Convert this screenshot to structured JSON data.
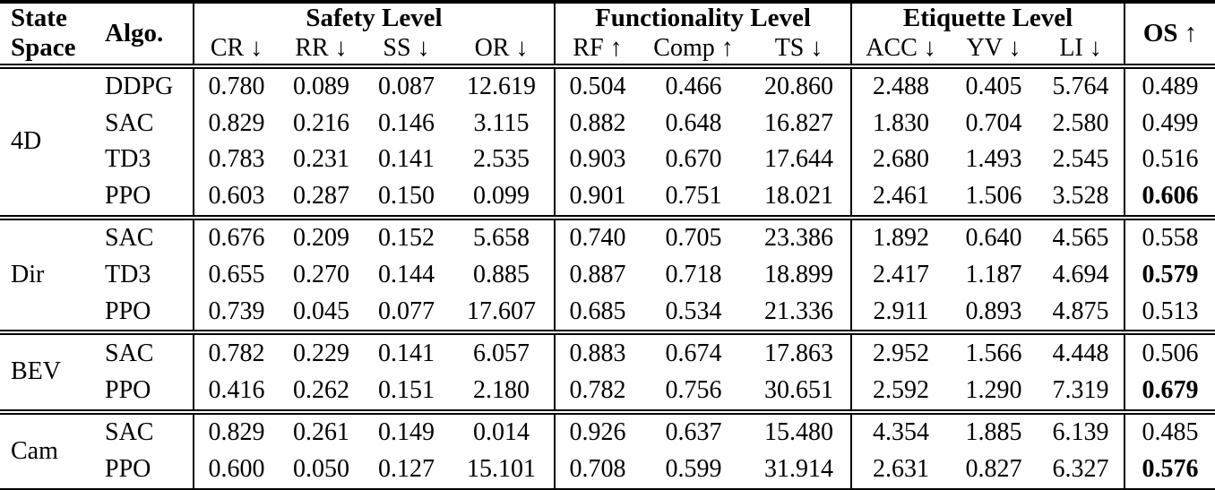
{
  "colors": {
    "text": "#000000",
    "background": "#ffffff",
    "rule": "#000000"
  },
  "header": {
    "state_line1": "State",
    "state_line2": "Space",
    "algo": "Algo.",
    "level_groups": [
      {
        "label": "Safety Level",
        "span": 4
      },
      {
        "label": "Functionality Level",
        "span": 3
      },
      {
        "label": "Etiquette Level",
        "span": 3
      }
    ],
    "subcols": [
      "CR ↓",
      "RR ↓",
      "SS ↓",
      "OR ↓",
      "RF ↑",
      "Comp ↑",
      "TS ↓",
      "ACC ↓",
      "YV ↓",
      "LI ↓"
    ],
    "os_label": "OS",
    "os_arrow": "↑"
  },
  "body": {
    "groups": [
      {
        "state_space": "4D",
        "rows": [
          {
            "algo": "DDPG",
            "values": [
              "0.780",
              "0.089",
              "0.087",
              "12.619",
              "0.504",
              "0.466",
              "20.860",
              "2.488",
              "0.405",
              "5.764",
              "0.489"
            ],
            "bold_os": false
          },
          {
            "algo": "SAC",
            "values": [
              "0.829",
              "0.216",
              "0.146",
              "3.115",
              "0.882",
              "0.648",
              "16.827",
              "1.830",
              "0.704",
              "2.580",
              "0.499"
            ],
            "bold_os": false
          },
          {
            "algo": "TD3",
            "values": [
              "0.783",
              "0.231",
              "0.141",
              "2.535",
              "0.903",
              "0.670",
              "17.644",
              "2.680",
              "1.493",
              "2.545",
              "0.516"
            ],
            "bold_os": false
          },
          {
            "algo": "PPO",
            "values": [
              "0.603",
              "0.287",
              "0.150",
              "0.099",
              "0.901",
              "0.751",
              "18.021",
              "2.461",
              "1.506",
              "3.528",
              "0.606"
            ],
            "bold_os": true
          }
        ]
      },
      {
        "state_space": "Dir",
        "rows": [
          {
            "algo": "SAC",
            "values": [
              "0.676",
              "0.209",
              "0.152",
              "5.658",
              "0.740",
              "0.705",
              "23.386",
              "1.892",
              "0.640",
              "4.565",
              "0.558"
            ],
            "bold_os": false
          },
          {
            "algo": "TD3",
            "values": [
              "0.655",
              "0.270",
              "0.144",
              "0.885",
              "0.887",
              "0.718",
              "18.899",
              "2.417",
              "1.187",
              "4.694",
              "0.579"
            ],
            "bold_os": true
          },
          {
            "algo": "PPO",
            "values": [
              "0.739",
              "0.045",
              "0.077",
              "17.607",
              "0.685",
              "0.534",
              "21.336",
              "2.911",
              "0.893",
              "4.875",
              "0.513"
            ],
            "bold_os": false
          }
        ]
      },
      {
        "state_space": "BEV",
        "rows": [
          {
            "algo": "SAC",
            "values": [
              "0.782",
              "0.229",
              "0.141",
              "6.057",
              "0.883",
              "0.674",
              "17.863",
              "2.952",
              "1.566",
              "4.448",
              "0.506"
            ],
            "bold_os": false
          },
          {
            "algo": "PPO",
            "values": [
              "0.416",
              "0.262",
              "0.151",
              "2.180",
              "0.782",
              "0.756",
              "30.651",
              "2.592",
              "1.290",
              "7.319",
              "0.679"
            ],
            "bold_os": true
          }
        ]
      },
      {
        "state_space": "Cam",
        "rows": [
          {
            "algo": "SAC",
            "values": [
              "0.829",
              "0.261",
              "0.149",
              "0.014",
              "0.926",
              "0.637",
              "15.480",
              "4.354",
              "1.885",
              "6.139",
              "0.485"
            ],
            "bold_os": false
          },
          {
            "algo": "PPO",
            "values": [
              "0.600",
              "0.050",
              "0.127",
              "15.101",
              "0.708",
              "0.599",
              "31.914",
              "2.631",
              "0.827",
              "6.327",
              "0.576"
            ],
            "bold_os": true
          }
        ]
      }
    ]
  }
}
